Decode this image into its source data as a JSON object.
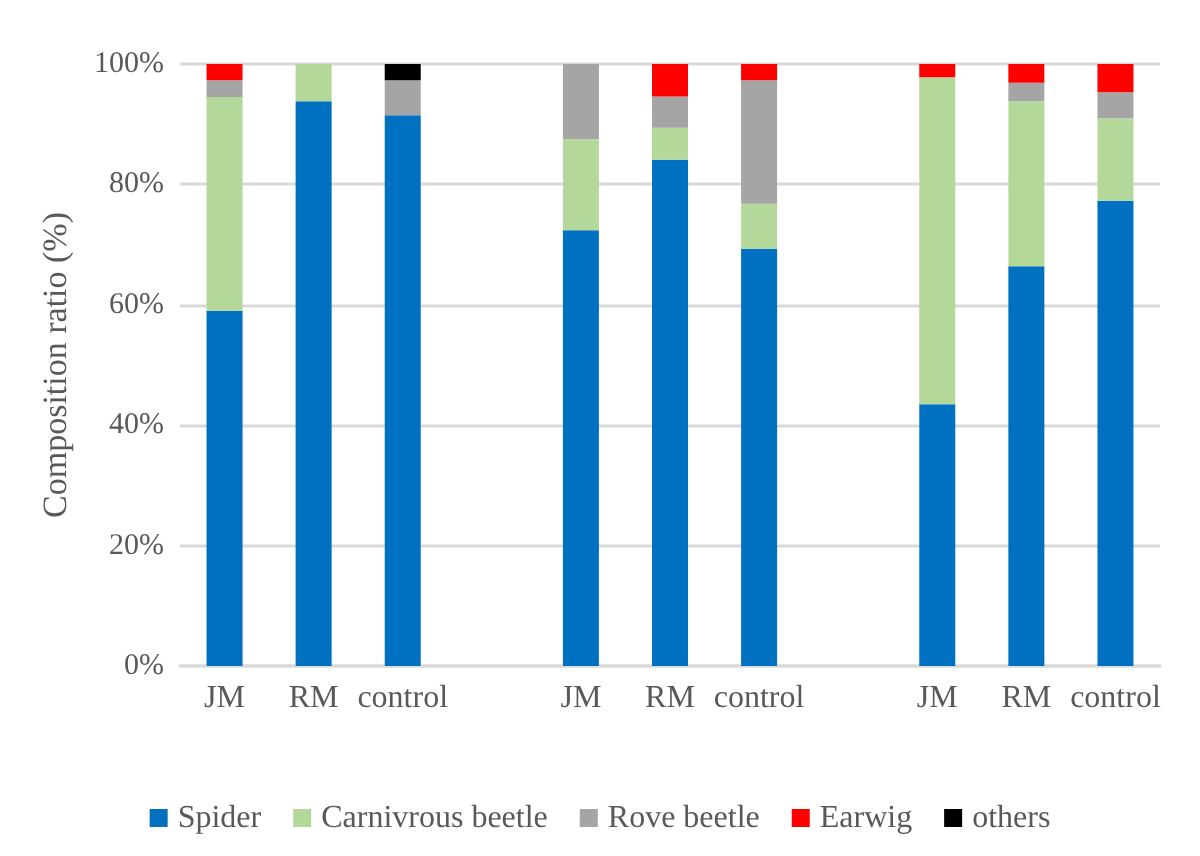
{
  "chart_data": {
    "type": "bar",
    "stacked": true,
    "ylabel": "Composition ratio (%)",
    "categories": [
      "JM",
      "RM",
      "control",
      null,
      "JM",
      "RM",
      "control",
      null,
      "JM",
      "RM",
      "control"
    ],
    "series": [
      {
        "name": "Spider",
        "color": "#0070c0",
        "values": [
          59,
          93.8,
          91.5,
          null,
          72.4,
          84.1,
          69.3,
          null,
          43.5,
          66.4,
          77.3
        ]
      },
      {
        "name": "Carnivrous beetle",
        "color": "#b4d89a",
        "values": [
          35.5,
          6.2,
          null,
          null,
          15.1,
          5.3,
          7.5,
          null,
          54.3,
          27.4,
          13.7
        ]
      },
      {
        "name": "Rove beetle",
        "color": "#a5a5a5",
        "values": [
          2.8,
          null,
          5.8,
          null,
          12.5,
          5.2,
          20.5,
          null,
          null,
          3.1,
          4.3
        ]
      },
      {
        "name": "Earwig",
        "color": "#ff0000",
        "values": [
          2.7,
          null,
          null,
          null,
          null,
          5.4,
          2.7,
          null,
          2.2,
          3.1,
          4.7
        ]
      },
      {
        "name": "others",
        "color": "#000000",
        "values": [
          null,
          null,
          2.7,
          null,
          null,
          null,
          null,
          null,
          null,
          null,
          null
        ]
      }
    ],
    "ylim": [
      0,
      100
    ],
    "yticks": [
      {
        "value": 0,
        "label": "0%"
      },
      {
        "value": 20,
        "label": "20%"
      },
      {
        "value": 40,
        "label": "40%"
      },
      {
        "value": 60,
        "label": "60%"
      },
      {
        "value": 80,
        "label": "80%"
      },
      {
        "value": 100,
        "label": "100%"
      }
    ],
    "grid": "y",
    "legend": "bottom"
  }
}
